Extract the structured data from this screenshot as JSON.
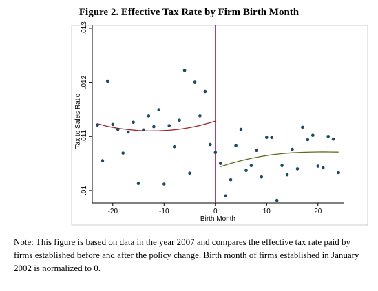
{
  "chart_data": {
    "type": "scatter",
    "title": "Figure 2. Effective Tax Rate by Firm Birth Month",
    "xlabel": "Birth Month",
    "ylabel": "Tax to Sales Ratio",
    "xlim": [
      -24,
      25
    ],
    "ylim": [
      0.00977,
      0.01305
    ],
    "x_ticks": [
      -20,
      -10,
      0,
      10,
      20
    ],
    "x_tick_labels": [
      "-20",
      "-10",
      "0",
      "10",
      "20"
    ],
    "y_ticks": [
      0.01,
      0.011,
      0.012,
      0.013
    ],
    "y_tick_labels": [
      ".01",
      ".011",
      ".012",
      ".013"
    ],
    "grid": false,
    "legend": "none",
    "vline_x": 0,
    "series": [
      {
        "kind": "points",
        "color": "#1c4a60",
        "x": [
          -23,
          -22,
          -21,
          -20,
          -19,
          -18,
          -17,
          -16,
          -15,
          -14,
          -13,
          -12,
          -11,
          -10,
          -9,
          -8,
          -7,
          -6,
          -5,
          -4,
          -3,
          -2,
          -1,
          0,
          1,
          2,
          3,
          4,
          5,
          6,
          7,
          8,
          9,
          10,
          11,
          12,
          13,
          14,
          15,
          16,
          17,
          18,
          19,
          20,
          21,
          22,
          23,
          24
        ],
        "y": [
          0.01121,
          0.01055,
          0.01202,
          0.01122,
          0.01113,
          0.01069,
          0.01108,
          0.01126,
          0.01013,
          0.01112,
          0.01138,
          0.01118,
          0.01149,
          0.01012,
          0.0112,
          0.01081,
          0.0113,
          0.01222,
          0.01032,
          0.012,
          0.01138,
          0.01183,
          0.01085,
          0.0107,
          0.0105,
          0.0099,
          0.0102,
          0.01083,
          0.01113,
          0.01037,
          0.01046,
          0.01074,
          0.01025,
          0.01098,
          0.01098,
          0.00982,
          0.01046,
          0.01029,
          0.01076,
          0.0104,
          0.01117,
          0.01094,
          0.01102,
          0.01045,
          0.01042,
          0.011,
          0.01095,
          0.01033
        ]
      },
      {
        "kind": "fit",
        "color": "#a3232a",
        "x": [
          -23,
          -21,
          -19,
          -17,
          -15,
          -13,
          -11,
          -9,
          -7,
          -5,
          -3,
          -1,
          0
        ],
        "y": [
          0.011235,
          0.011185,
          0.01115,
          0.011125,
          0.011108,
          0.0111,
          0.011102,
          0.011112,
          0.011132,
          0.011162,
          0.011202,
          0.011252,
          0.011282
        ]
      },
      {
        "kind": "fit",
        "color": "#5a6e1e",
        "x": [
          1,
          3,
          5,
          7,
          9,
          11,
          13,
          15,
          17,
          19,
          21,
          23,
          24
        ],
        "y": [
          0.01044,
          0.0105,
          0.01055,
          0.010595,
          0.01063,
          0.01066,
          0.01068,
          0.010695,
          0.010705,
          0.01071,
          0.010712,
          0.01071,
          0.010708
        ]
      }
    ]
  },
  "note": "Note: This figure is based on data in the year 2007 and compares the effective tax rate paid by firms established before and after the policy change. Birth month of firms established in January 2002 is normalized to 0."
}
